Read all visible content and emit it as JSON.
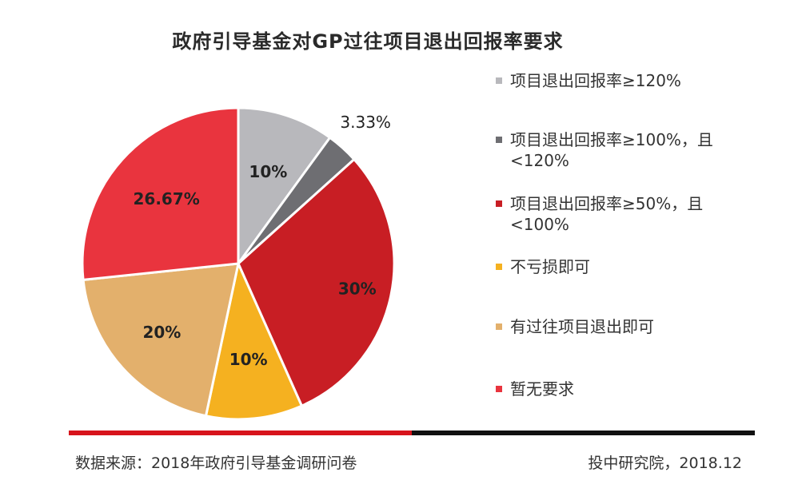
{
  "chart_data": {
    "type": "pie",
    "title": "政府引导基金对GP过往项目退出回报率要求",
    "slices": [
      {
        "label": "项目退出回报率≥120%",
        "value": 10,
        "display": "10%",
        "color": "#b8b8bc"
      },
      {
        "label": "项目退出回报率≥100%，且<120%",
        "value": 3.33,
        "display": "3.33%",
        "color": "#6e6e72"
      },
      {
        "label": "项目退出回报率≥50%，且<100%",
        "value": 30,
        "display": "30%",
        "color": "#c81e24"
      },
      {
        "label": "不亏损即可",
        "value": 10,
        "display": "10%",
        "color": "#f5b120"
      },
      {
        "label": "有过往项目退出即可",
        "value": 20,
        "display": "20%",
        "color": "#e3b06c"
      },
      {
        "label": "暂无要求",
        "value": 26.67,
        "display": "26.67%",
        "color": "#e9343e"
      }
    ],
    "legend_position": "right"
  },
  "footer": {
    "source": "数据来源：2018年政府引导基金调研问卷",
    "publisher": "投中研究院，2018.12"
  }
}
